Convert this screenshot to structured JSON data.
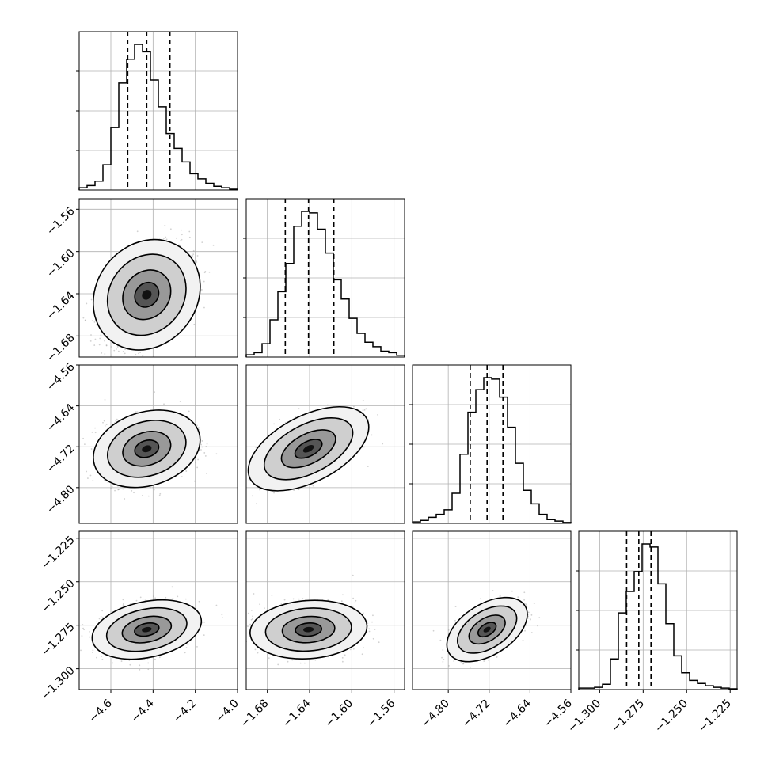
{
  "chart_data": {
    "type": "corner",
    "parameters": 4,
    "grid": true,
    "quantile_lines": "dashed, three per diagonal panel",
    "axes": [
      {
        "index": 0,
        "range": [
          -4.75,
          -4.0
        ],
        "ticks": [
          -4.6,
          -4.4,
          -4.2,
          -4.0
        ],
        "tick_labels": [
          "−4.6",
          "−4.4",
          "−4.2",
          "−4.0"
        ],
        "quantiles": [
          -4.52,
          -4.43,
          -4.32
        ],
        "sigma": 0.1
      },
      {
        "index": 1,
        "range": [
          -1.7,
          -1.55
        ],
        "ticks": [
          -1.68,
          -1.64,
          -1.6,
          -1.56
        ],
        "tick_labels": [
          "−1.68",
          "−1.64",
          "−1.60",
          "−1.56"
        ],
        "quantiles": [
          -1.663,
          -1.641,
          -1.617
        ],
        "sigma": 0.022
      },
      {
        "index": 2,
        "range": [
          -4.87,
          -4.56
        ],
        "ticks": [
          -4.8,
          -4.72,
          -4.64,
          -4.56
        ],
        "tick_labels": [
          "−4.80",
          "−4.72",
          "−4.64",
          "−4.56"
        ],
        "quantiles": [
          -4.757,
          -4.724,
          -4.693
        ],
        "sigma": 0.031
      },
      {
        "index": 3,
        "range": [
          -1.312,
          -1.221
        ],
        "ticks": [
          -1.3,
          -1.275,
          -1.25,
          -1.225
        ],
        "tick_labels": [
          "−1.300",
          "−1.275",
          "−1.250",
          "−1.225"
        ],
        "quantiles": [
          -1.2845,
          -1.2775,
          -1.2705
        ],
        "sigma": 0.007
      }
    ],
    "correlations": {
      "1-0": 0.45,
      "2-0": 0.2,
      "2-1": 0.55,
      "3-0": 0.25,
      "3-1": 0.1,
      "3-2": 0.55
    },
    "histograms": [
      {
        "param": 0,
        "bins": 20,
        "heights": [
          0.015,
          0.03,
          0.06,
          0.17,
          0.42,
          0.72,
          0.88,
          0.98,
          0.93,
          0.74,
          0.56,
          0.38,
          0.28,
          0.19,
          0.11,
          0.075,
          0.045,
          0.025,
          0.015,
          0.005
        ]
      },
      {
        "param": 1,
        "bins": 20,
        "heights": [
          0.015,
          0.03,
          0.09,
          0.25,
          0.44,
          0.63,
          0.88,
          0.98,
          0.97,
          0.86,
          0.7,
          0.52,
          0.39,
          0.26,
          0.16,
          0.1,
          0.07,
          0.04,
          0.03,
          0.012
        ]
      },
      {
        "param": 2,
        "bins": 20,
        "heights": [
          0.01,
          0.02,
          0.04,
          0.06,
          0.09,
          0.2,
          0.46,
          0.74,
          0.89,
          0.97,
          0.96,
          0.84,
          0.64,
          0.4,
          0.22,
          0.13,
          0.06,
          0.025,
          0.015,
          0.006
        ]
      },
      {
        "param": 3,
        "bins": 20,
        "heights": [
          0.01,
          0.01,
          0.015,
          0.035,
          0.2,
          0.5,
          0.64,
          0.77,
          0.95,
          0.93,
          0.69,
          0.43,
          0.22,
          0.11,
          0.06,
          0.04,
          0.025,
          0.015,
          0.01,
          0.005
        ]
      }
    ]
  }
}
